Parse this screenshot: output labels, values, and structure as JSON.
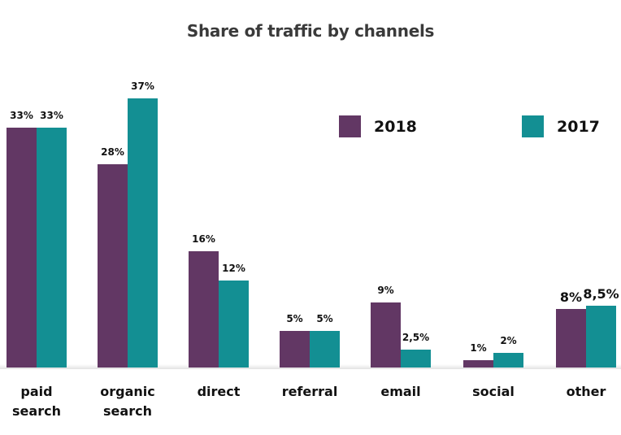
{
  "chart_data": {
    "type": "bar",
    "title": "Share of traffic by channels",
    "xlabel": "",
    "ylabel": "",
    "categories": [
      "paid search",
      "organic search",
      "direct",
      "referral",
      "email",
      "social",
      "other"
    ],
    "series": [
      {
        "name": "2018",
        "color": "#623764",
        "values": [
          33,
          28,
          16,
          5,
          9,
          1,
          8
        ],
        "labels": [
          "33%",
          "28%",
          "16%",
          "5%",
          "9%",
          "1%",
          "8%"
        ]
      },
      {
        "name": "2017",
        "color": "#138f93",
        "values": [
          33,
          37,
          12,
          5,
          2.5,
          2,
          8.5
        ],
        "labels": [
          "33%",
          "37%",
          "12%",
          "5%",
          "2,5%",
          "2%",
          "8,5%"
        ]
      }
    ],
    "ylim": [
      0,
      40
    ],
    "grid": false,
    "legend_position": "top-right",
    "data_labels": true
  },
  "legend": {
    "items": [
      {
        "label": "2018",
        "color": "#623764"
      },
      {
        "label": "2017",
        "color": "#138f93"
      }
    ]
  },
  "categories_display": [
    [
      "paid",
      "search"
    ],
    [
      "organic",
      "search"
    ],
    [
      "direct"
    ],
    [
      "referral"
    ],
    [
      "email"
    ],
    [
      "social"
    ],
    [
      "other"
    ]
  ]
}
